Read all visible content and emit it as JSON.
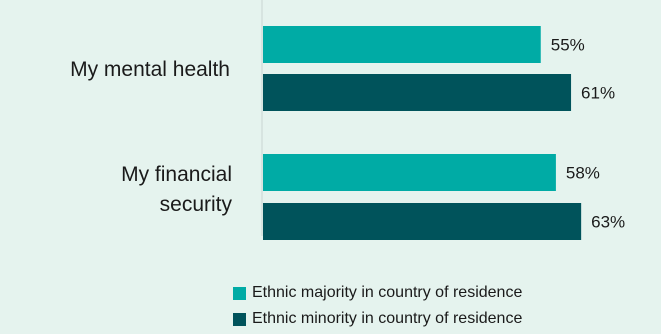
{
  "chart_data": {
    "type": "bar",
    "orientation": "horizontal",
    "categories": [
      "My mental health",
      "My financial security"
    ],
    "series": [
      {
        "name": "Ethnic majority in country of residence",
        "color": "#00aba5",
        "values": [
          55,
          58
        ],
        "labels": [
          "55%",
          "58%"
        ]
      },
      {
        "name": "Ethnic minority in country of residence",
        "color": "#00535b",
        "values": [
          61,
          63
        ],
        "labels": [
          "61%",
          "63%"
        ]
      }
    ],
    "title": "",
    "xlabel": "",
    "ylabel": "",
    "value_unit": "%",
    "xlim": [
      0,
      100
    ],
    "grid": false,
    "legend_position": "bottom"
  },
  "category_label_lines": {
    "cat0": [
      "My mental health"
    ],
    "cat1": [
      "My financial",
      "security"
    ]
  }
}
